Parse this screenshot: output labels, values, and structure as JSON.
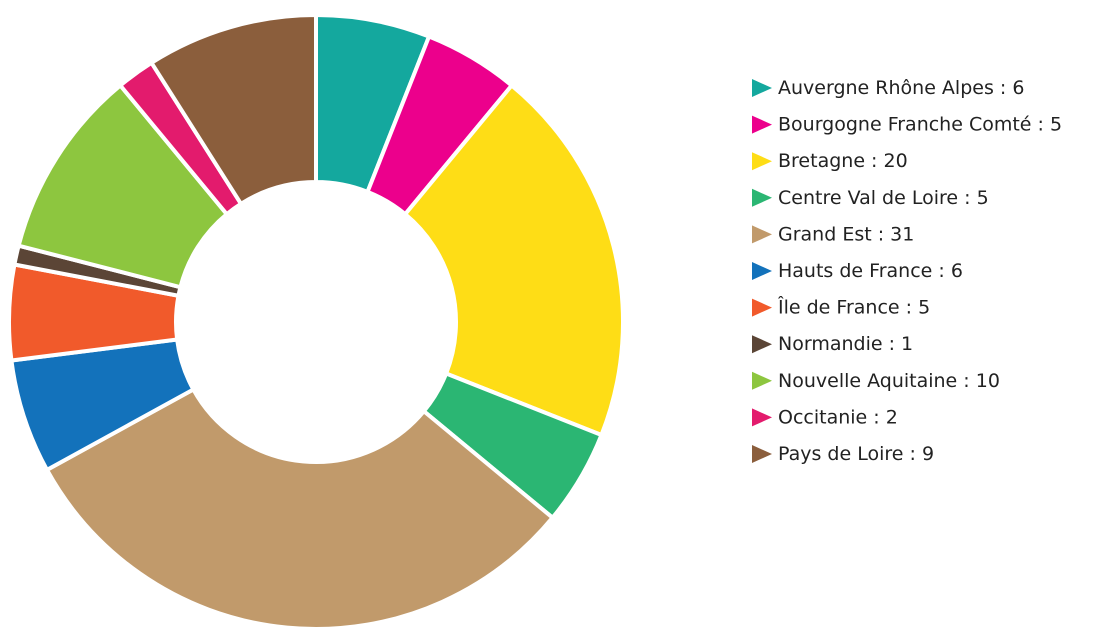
{
  "chart_data": {
    "type": "donut",
    "categories": [
      "Auvergne Rhône Alpes",
      "Bourgogne Franche Comté",
      "Bretagne",
      "Centre Val de Loire",
      "Grand Est",
      "Hauts de France",
      "Île de France",
      "Normandie",
      "Nouvelle Aquitaine",
      "Occitanie",
      "Pays de Loire"
    ],
    "values": [
      6,
      5,
      20,
      5,
      31,
      6,
      5,
      1,
      10,
      2,
      9
    ],
    "colors": [
      "#14a89e",
      "#ec008c",
      "#fedd16",
      "#2bb673",
      "#c19a6b",
      "#1372bb",
      "#f15a2b",
      "#5b4536",
      "#8dc63f",
      "#e31b6d",
      "#8b5e3c"
    ],
    "label_separator": " : ",
    "legend": "right"
  }
}
